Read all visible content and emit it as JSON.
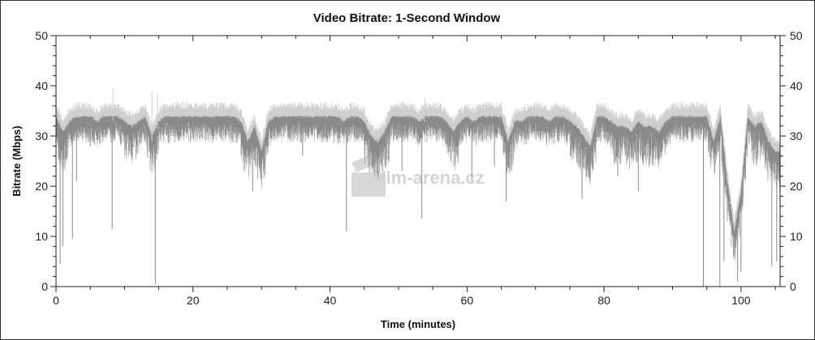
{
  "chart_data": {
    "type": "line",
    "title": "Video Bitrate: 1-Second Window",
    "xlabel": "Time (minutes)",
    "ylabel": "Bitrate (Mbps)",
    "xlim": [
      0,
      105.7
    ],
    "ylim": [
      0,
      50
    ],
    "x_ticks": [
      0,
      20,
      40,
      60,
      80,
      100
    ],
    "y_ticks": [
      0,
      10,
      20,
      30,
      40,
      50
    ],
    "right_axis_ticks": [
      0,
      10,
      20,
      30,
      40,
      50
    ],
    "grid": false,
    "legend": "none",
    "colors": {
      "series": "#8a8a8a",
      "envelope": "#cfcfcf"
    },
    "series": [
      {
        "x_step_minutes": 1,
        "values": [
          33,
          30,
          32,
          33,
          33,
          33,
          32,
          33,
          33,
          33,
          32,
          31,
          32,
          33,
          29,
          32,
          33,
          33,
          33,
          33,
          33,
          33,
          33,
          33,
          33,
          33,
          33,
          32,
          28,
          31,
          26,
          32,
          33,
          33,
          33,
          33,
          33,
          33,
          33,
          33,
          33,
          33,
          32,
          33,
          33,
          32,
          29,
          28,
          30,
          33,
          33,
          33,
          33,
          32,
          33,
          33,
          33,
          32,
          30,
          32,
          33,
          32,
          33,
          33,
          33,
          33,
          28,
          32,
          32,
          33,
          33,
          33,
          32,
          33,
          33,
          32,
          31,
          29,
          27,
          33,
          33,
          32,
          31,
          31,
          30,
          32,
          31,
          31,
          30,
          32,
          33,
          33,
          33,
          33,
          33,
          33,
          28,
          33,
          20,
          10,
          18,
          33,
          31,
          32,
          28,
          26
        ]
      }
    ],
    "spikes": [
      [
        0.6,
        4.5
      ],
      [
        1.0,
        8
      ],
      [
        2.4,
        9.5
      ],
      [
        3,
        21
      ],
      [
        5,
        28
      ],
      [
        8.2,
        11.5
      ],
      [
        8.3,
        39.5
      ],
      [
        11,
        27
      ],
      [
        14.0,
        39
      ],
      [
        14.5,
        0.5
      ],
      [
        14.8,
        38.5
      ],
      [
        27.5,
        23
      ],
      [
        28.7,
        19
      ],
      [
        36,
        26
      ],
      [
        42.4,
        11
      ],
      [
        50.5,
        23
      ],
      [
        53.4,
        13.5
      ],
      [
        53.8,
        37.5
      ],
      [
        60.7,
        21
      ],
      [
        64,
        24
      ],
      [
        65.7,
        17
      ],
      [
        76.8,
        17.5
      ],
      [
        82,
        22
      ],
      [
        85,
        19
      ],
      [
        94.5,
        0
      ],
      [
        96.9,
        0
      ],
      [
        97.5,
        5
      ],
      [
        99.5,
        1
      ],
      [
        100,
        3
      ],
      [
        104.5,
        4
      ],
      [
        105.2,
        5
      ]
    ]
  },
  "watermark": "Film-arena.cz"
}
